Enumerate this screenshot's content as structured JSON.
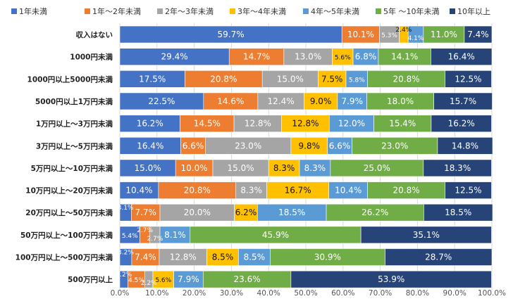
{
  "chart_data": {
    "type": "bar",
    "orientation": "horizontal",
    "stacked": true,
    "title": "",
    "xlabel": "",
    "ylabel": "",
    "xlim": [
      0,
      100
    ],
    "x_ticks": [
      "0.0%",
      "10.0%",
      "20.0%",
      "30.0%",
      "40.0%",
      "50.0%",
      "60.0%",
      "70.0%",
      "80.0%",
      "90.0%",
      "100.0%"
    ],
    "legend_position": "top",
    "categories": [
      "収入はない",
      "1000円未満",
      "1000円以上5000円未満",
      "5000円以上1万円未満",
      "1万円以上～3万円未満",
      "3万円以上～5万円未満",
      "5万円以上～10万円未満",
      "10万円以上～20万円未満",
      "20万円以上～50万円未満",
      "50万円以上～100万円未満",
      "100万円以上～500万円未満",
      "500万円以上"
    ],
    "series": [
      {
        "name": "1年未満",
        "color": "#4472C4",
        "values": [
          59.7,
          29.4,
          17.5,
          22.5,
          16.2,
          16.4,
          15.0,
          10.4,
          3.1,
          5.4,
          3.2,
          2.2
        ]
      },
      {
        "name": "1年～2年未満",
        "color": "#ED7D31",
        "values": [
          10.1,
          14.7,
          20.8,
          14.6,
          14.5,
          6.6,
          10.0,
          20.8,
          7.7,
          2.7,
          7.4,
          4.5
        ]
      },
      {
        "name": "2年～3年未満",
        "color": "#A5A5A5",
        "values": [
          5.3,
          13.0,
          15.0,
          12.4,
          12.8,
          23.0,
          15.0,
          8.3,
          20.0,
          2.7,
          12.8,
          2.2
        ]
      },
      {
        "name": "3年～4年未満",
        "color": "#FFC000",
        "values": [
          2.4,
          5.6,
          7.5,
          9.0,
          12.8,
          9.8,
          8.3,
          16.7,
          6.2,
          0.0,
          8.5,
          5.6
        ]
      },
      {
        "name": "4年～5年未満",
        "color": "#5B9BD5",
        "values": [
          4.1,
          6.8,
          5.8,
          7.9,
          12.0,
          6.6,
          8.3,
          10.4,
          18.5,
          8.1,
          8.5,
          7.9
        ]
      },
      {
        "name": "5年 ～10年未満",
        "color": "#70AD47",
        "values": [
          11.0,
          14.1,
          20.8,
          18.0,
          15.4,
          23.0,
          25.0,
          20.8,
          26.2,
          45.9,
          30.9,
          23.6
        ]
      },
      {
        "name": "10年以上",
        "color": "#264478",
        "values": [
          7.4,
          16.4,
          12.5,
          15.7,
          16.2,
          14.8,
          18.3,
          12.5,
          18.5,
          35.1,
          28.7,
          53.9
        ]
      }
    ],
    "data_labels": [
      [
        "59.7%",
        "10.1%",
        "5.3%",
        "2.4%",
        "4.1%",
        "11.0%",
        "7.4%"
      ],
      [
        "29.4%",
        "14.7%",
        "13.0%",
        "5.6%",
        "6.8%",
        "14.1%",
        "16.4%"
      ],
      [
        "17.5%",
        "20.8%",
        "15.0%",
        "7.5%",
        "5.8%",
        "20.8%",
        "12.5%"
      ],
      [
        "22.5%",
        "14.6%",
        "12.4%",
        "9.0%",
        "7.9%",
        "18.0%",
        "15.7%"
      ],
      [
        "16.2%",
        "14.5%",
        "12.8%",
        "12.8%",
        "12.0%",
        "15.4%",
        "16.2%"
      ],
      [
        "16.4%",
        "6.6%",
        "23.0%",
        "9.8%",
        "6.6%",
        "23.0%",
        "14.8%"
      ],
      [
        "15.0%",
        "10.0%",
        "15.0%",
        "8.3%",
        "8.3%",
        "25.0%",
        "18.3%"
      ],
      [
        "10.4%",
        "20.8%",
        "8.3%",
        "16.7%",
        "10.4%",
        "20.8%",
        "12.5%"
      ],
      [
        "3.1%",
        "7.7%",
        "20.0%",
        "6.2%",
        "18.5%",
        "26.2%",
        "18.5%"
      ],
      [
        "5.4%",
        "2.7%",
        "2.7%",
        "",
        "8.1%",
        "45.9%",
        "35.1%"
      ],
      [
        "3.2%",
        "7.4%",
        "12.8%",
        "8.5%",
        "8.5%",
        "30.9%",
        "28.7%"
      ],
      [
        "2.2%",
        "4.5%",
        "2.2%",
        "5.6%",
        "7.9%",
        "23.6%",
        "53.9%"
      ]
    ]
  }
}
